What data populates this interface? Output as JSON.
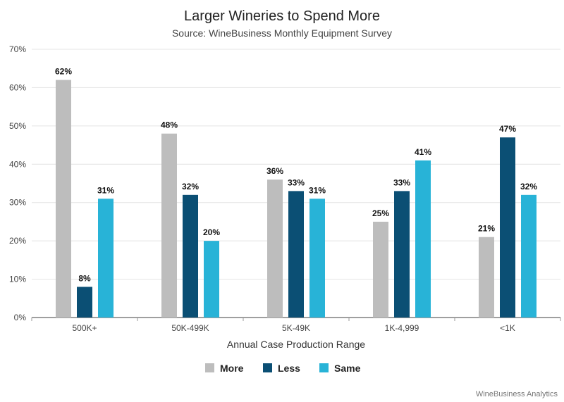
{
  "chart_data": {
    "type": "bar",
    "title": "Larger Wineries to Spend More",
    "subtitle": "Source: WineBusiness Monthly Equipment Survey",
    "xlabel": "Annual Case Production Range",
    "ylabel": "",
    "categories": [
      "500K+",
      "50K-499K",
      "5K-49K",
      "1K-4,999",
      "<1K"
    ],
    "series": [
      {
        "name": "More",
        "color": "#BDBDBD",
        "values": [
          62,
          48,
          36,
          25,
          21
        ]
      },
      {
        "name": "Less",
        "color": "#0B4F74",
        "values": [
          8,
          32,
          33,
          33,
          47
        ]
      },
      {
        "name": "Same",
        "color": "#28B3D7",
        "values": [
          31,
          20,
          31,
          41,
          32
        ]
      }
    ],
    "ylim": [
      0,
      70
    ],
    "yticks": [
      0,
      10,
      20,
      30,
      40,
      50,
      60,
      70
    ],
    "ytick_labels": [
      "0%",
      "10%",
      "20%",
      "30%",
      "40%",
      "50%",
      "60%",
      "70%"
    ],
    "value_suffix": "%",
    "grid": true,
    "legend": {
      "position": "bottom-center"
    },
    "credit": "WineBusiness Analytics"
  }
}
